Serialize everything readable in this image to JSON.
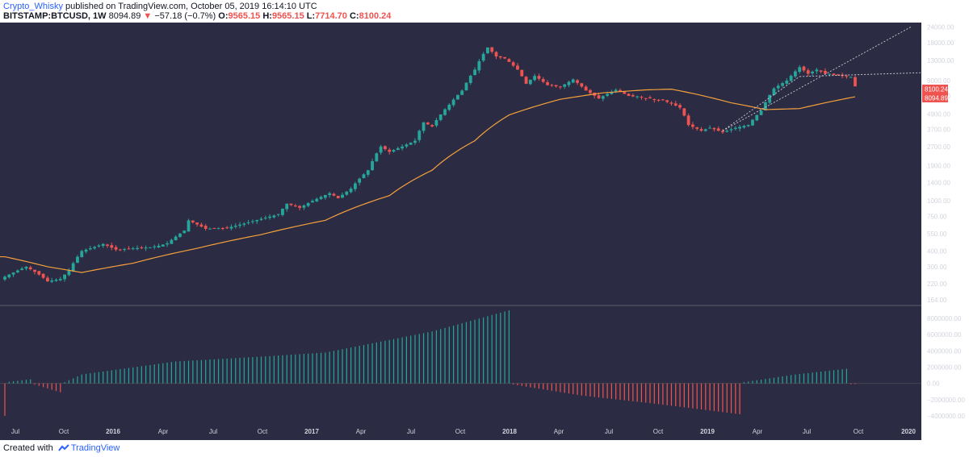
{
  "header": {
    "author": "Crypto_Whisky",
    "published_text": "published on TradingView.com, October 05, 2019 16:14:10 UTC",
    "symbol": "BITSTAMP:BTCUSD, 1W",
    "last": "8094.89",
    "arrow": "▼",
    "change": "−57.18 (−0.7%)",
    "o_label": "O:",
    "o": "9565.15",
    "h_label": "H:",
    "h": "9565.15",
    "l_label": "L:",
    "l": "7714.70",
    "c_label": "C:",
    "c": "8100.24"
  },
  "footer": {
    "created_with": "Created with",
    "brand": "TradingView"
  },
  "colors": {
    "background": "#2b2b43",
    "up": "#26a69a",
    "down": "#ef5350",
    "ma": "#f6a23c",
    "axis_text": "#d1d4dc",
    "trendline": "#c9ccd6"
  },
  "chart_data": {
    "type": "candlestick+histogram",
    "interval": "1W",
    "price_scale": "log",
    "price_ylim": [
      150,
      26000
    ],
    "y_ticks": [
      "24000.00",
      "18000.00",
      "13000.00",
      "9000.00",
      "6800.00",
      "4900.00",
      "3700.00",
      "2700.00",
      "1900.00",
      "1400.00",
      "1000.00",
      "750.00",
      "550.00",
      "400.00",
      "300.00",
      "220.00",
      "164.00"
    ],
    "x_ticks": [
      "Jul",
      "Oct",
      "2016",
      "Apr",
      "Jul",
      "Oct",
      "2017",
      "Apr",
      "Jul",
      "Oct",
      "2018",
      "Apr",
      "Jul",
      "Oct",
      "2019",
      "Apr",
      "Jul",
      "Oct",
      "2020"
    ],
    "price_labels": [
      {
        "text": "8100.24",
        "value": 8100.24
      },
      {
        "text": "8094.89",
        "value": 8094.89
      }
    ],
    "price_path_anchors": [
      {
        "week": 0,
        "price": 250
      },
      {
        "week": 5,
        "price": 300
      },
      {
        "week": 8,
        "price": 260
      },
      {
        "week": 10,
        "price": 230
      },
      {
        "week": 13,
        "price": 240
      },
      {
        "week": 15,
        "price": 280
      },
      {
        "week": 18,
        "price": 400
      },
      {
        "week": 21,
        "price": 430
      },
      {
        "week": 23,
        "price": 455
      },
      {
        "week": 26,
        "price": 410
      },
      {
        "week": 30,
        "price": 420
      },
      {
        "week": 35,
        "price": 430
      },
      {
        "week": 38,
        "price": 460
      },
      {
        "week": 42,
        "price": 580
      },
      {
        "week": 43,
        "price": 700
      },
      {
        "week": 45,
        "price": 650
      },
      {
        "week": 47,
        "price": 600
      },
      {
        "week": 52,
        "price": 610
      },
      {
        "week": 56,
        "price": 660
      },
      {
        "week": 60,
        "price": 720
      },
      {
        "week": 64,
        "price": 780
      },
      {
        "week": 66,
        "price": 950
      },
      {
        "week": 69,
        "price": 880
      },
      {
        "week": 72,
        "price": 1000
      },
      {
        "week": 76,
        "price": 1150
      },
      {
        "week": 78,
        "price": 1050
      },
      {
        "week": 81,
        "price": 1250
      },
      {
        "week": 85,
        "price": 1750
      },
      {
        "week": 88,
        "price": 2700
      },
      {
        "week": 90,
        "price": 2450
      },
      {
        "week": 93,
        "price": 2700
      },
      {
        "week": 96,
        "price": 3000
      },
      {
        "week": 98,
        "price": 4200
      },
      {
        "week": 100,
        "price": 3900
      },
      {
        "week": 104,
        "price": 5800
      },
      {
        "week": 107,
        "price": 7500
      },
      {
        "week": 110,
        "price": 11000
      },
      {
        "week": 113,
        "price": 16500
      },
      {
        "week": 115,
        "price": 14000
      },
      {
        "week": 117,
        "price": 13500
      },
      {
        "week": 120,
        "price": 11000
      },
      {
        "week": 122,
        "price": 8500
      },
      {
        "week": 124,
        "price": 9800
      },
      {
        "week": 127,
        "price": 8300
      },
      {
        "week": 130,
        "price": 8000
      },
      {
        "week": 133,
        "price": 9200
      },
      {
        "week": 136,
        "price": 7500
      },
      {
        "week": 139,
        "price": 6500
      },
      {
        "week": 143,
        "price": 7600
      },
      {
        "week": 146,
        "price": 6800
      },
      {
        "week": 151,
        "price": 6500
      },
      {
        "week": 154,
        "price": 6300
      },
      {
        "week": 158,
        "price": 5500
      },
      {
        "week": 160,
        "price": 4000
      },
      {
        "week": 163,
        "price": 3600
      },
      {
        "week": 165,
        "price": 3800
      },
      {
        "week": 168,
        "price": 3500
      },
      {
        "week": 171,
        "price": 3800
      },
      {
        "week": 174,
        "price": 4000
      },
      {
        "week": 177,
        "price": 5200
      },
      {
        "week": 180,
        "price": 7800
      },
      {
        "week": 183,
        "price": 9000
      },
      {
        "week": 186,
        "price": 11500
      },
      {
        "week": 188,
        "price": 10200
      },
      {
        "week": 190,
        "price": 11000
      },
      {
        "week": 192,
        "price": 10200
      },
      {
        "week": 194,
        "price": 10000
      },
      {
        "week": 196,
        "price": 9800
      },
      {
        "week": 198,
        "price": 9500
      },
      {
        "week": 199,
        "price": 8100
      }
    ],
    "ma_anchors": [
      {
        "week": 0,
        "price": 360
      },
      {
        "week": 10,
        "price": 300
      },
      {
        "week": 18,
        "price": 270
      },
      {
        "week": 30,
        "price": 320
      },
      {
        "week": 45,
        "price": 420
      },
      {
        "week": 60,
        "price": 540
      },
      {
        "week": 75,
        "price": 700
      },
      {
        "week": 90,
        "price": 1100
      },
      {
        "week": 100,
        "price": 1750
      },
      {
        "week": 110,
        "price": 3000
      },
      {
        "week": 118,
        "price": 4800
      },
      {
        "week": 130,
        "price": 6400
      },
      {
        "week": 140,
        "price": 7200
      },
      {
        "week": 150,
        "price": 7600
      },
      {
        "week": 156,
        "price": 7700
      },
      {
        "week": 162,
        "price": 7000
      },
      {
        "week": 170,
        "price": 6000
      },
      {
        "week": 178,
        "price": 5300
      },
      {
        "week": 186,
        "price": 5400
      },
      {
        "week": 192,
        "price": 6000
      },
      {
        "week": 199,
        "price": 6700
      }
    ],
    "histogram_ylim": [
      -5000000,
      9500000
    ],
    "histogram_ticks": [
      "8000000.00",
      "6000000.00",
      "4000000.00",
      "2000000.00",
      "0.00",
      "−2000000.00",
      "−4000000.00"
    ],
    "histogram_anchors": [
      {
        "week": 0,
        "value": -4000000
      },
      {
        "week": 1,
        "value": 200000
      },
      {
        "week": 6,
        "value": 500000
      },
      {
        "week": 7,
        "value": -150000
      },
      {
        "week": 13,
        "value": -1100000
      },
      {
        "week": 14,
        "value": 150000
      },
      {
        "week": 18,
        "value": 1100000
      },
      {
        "week": 40,
        "value": 2700000
      },
      {
        "week": 60,
        "value": 3300000
      },
      {
        "week": 75,
        "value": 3800000
      },
      {
        "week": 100,
        "value": 6400000
      },
      {
        "week": 118,
        "value": 9000000
      },
      {
        "week": 119,
        "value": -150000
      },
      {
        "week": 135,
        "value": -1500000
      },
      {
        "week": 152,
        "value": -2500000
      },
      {
        "week": 172,
        "value": -3800000
      },
      {
        "week": 173,
        "value": 150000
      },
      {
        "week": 185,
        "value": 1100000
      },
      {
        "week": 197,
        "value": 1800000
      },
      {
        "week": 198,
        "value": -100000
      }
    ]
  }
}
